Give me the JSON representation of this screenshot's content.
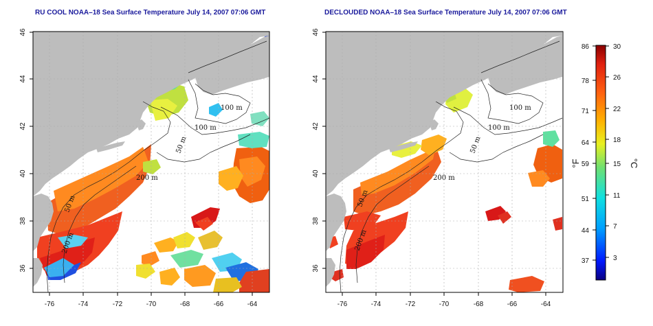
{
  "maps": [
    {
      "title": "RU COOL NOAA–18 Sea Surface Temperature July 14, 2007 07:06 GMT",
      "product": "raw"
    },
    {
      "title": "DECLOUDED NOAA–18 Sea Surface Temperature July 14, 2007 07:06 GMT",
      "product": "declouded"
    }
  ],
  "axes": {
    "lon_ticks": [
      "-76",
      "-74",
      "-72",
      "-70",
      "-68",
      "-66",
      "-64"
    ],
    "lat_ticks": [
      "36",
      "38",
      "40",
      "42",
      "44",
      "46"
    ],
    "lon_range": [
      -77,
      -63
    ],
    "lat_range": [
      35,
      46
    ]
  },
  "contour_labels": [
    "100 m",
    "100 m",
    "50 m",
    "200 m",
    "50 m",
    "200 m"
  ],
  "colorbar": {
    "fahrenheit_ticks": [
      "86",
      "78",
      "71",
      "64",
      "59",
      "51",
      "44",
      "37"
    ],
    "celsius_ticks": [
      "30",
      "26",
      "22",
      "18",
      "15",
      "11",
      "7",
      "3"
    ],
    "range_c": [
      0,
      30
    ],
    "unit_left": "°F",
    "unit_right": "°C"
  },
  "colors": {
    "land": "#bdbdbd",
    "cloud": "#ffffff",
    "title": "#1a1a9c"
  }
}
